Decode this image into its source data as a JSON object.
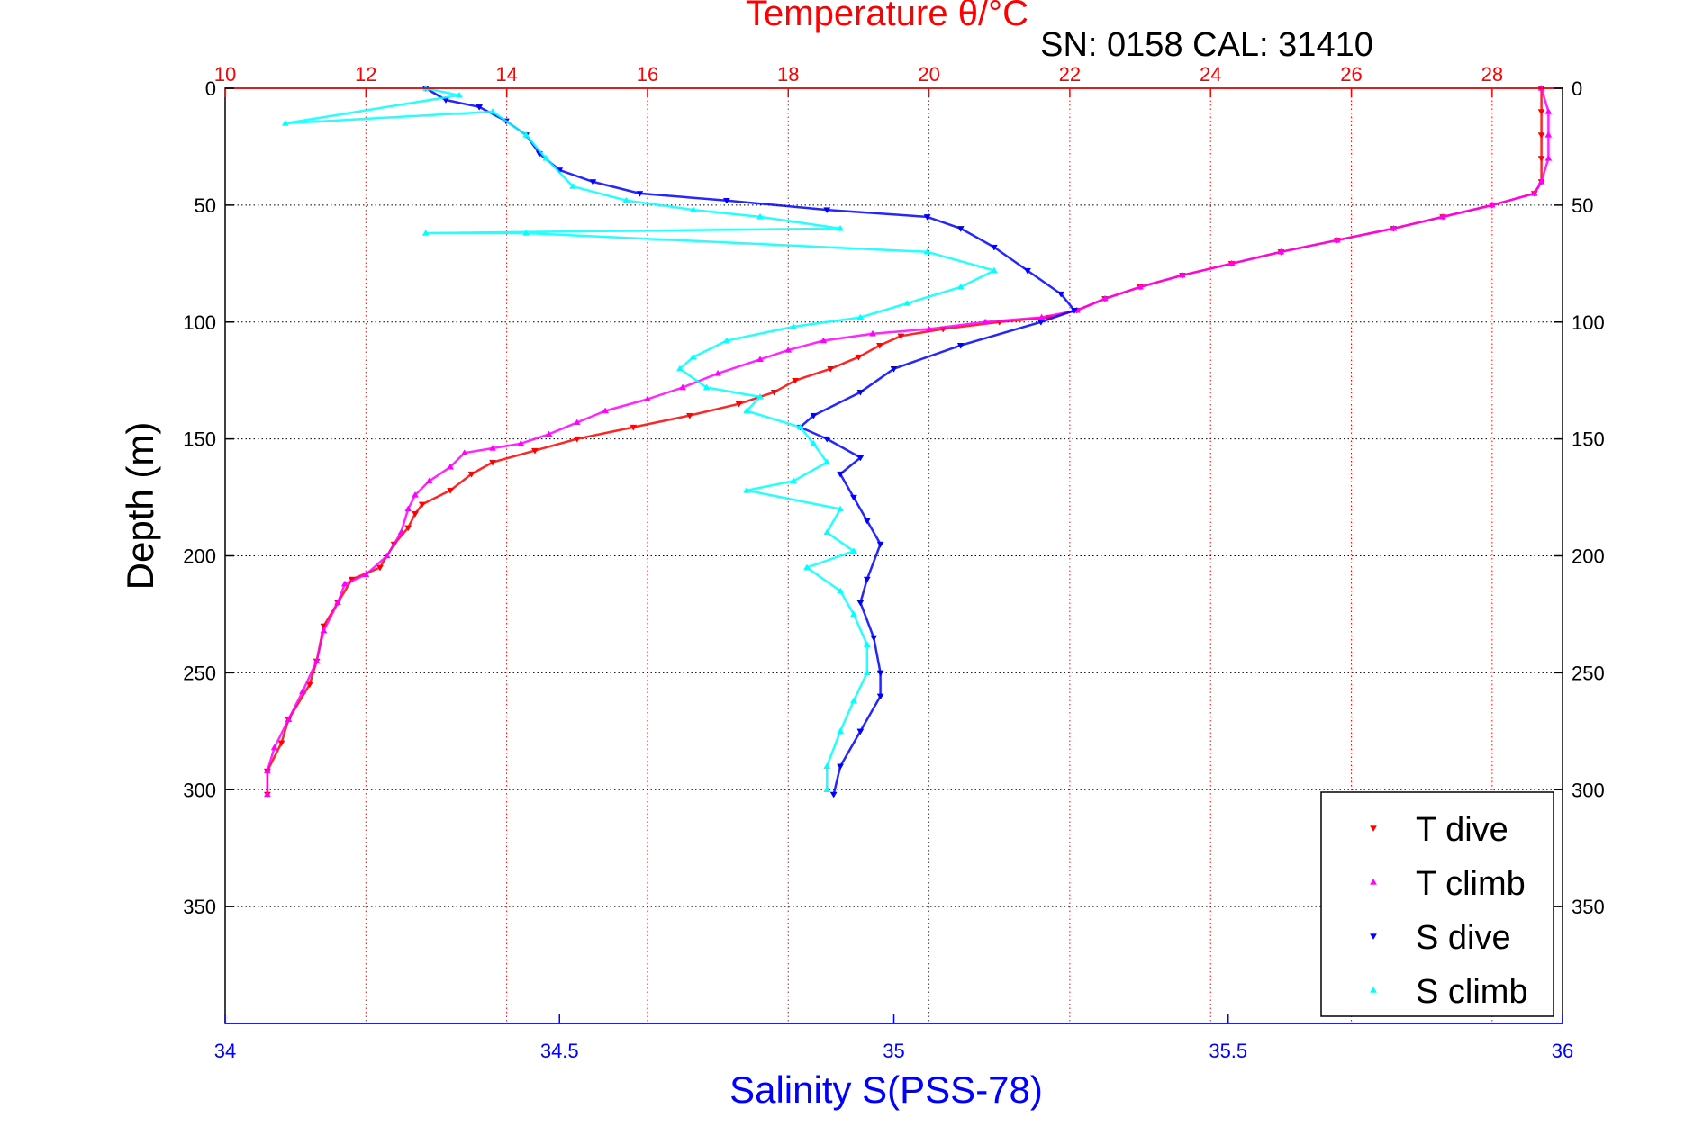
{
  "chart_data": {
    "type": "scatter",
    "title": "Temperature θ/°C",
    "subtitle": "SN: 0158  CAL: 31410",
    "ylabel": "Depth (m)",
    "xlabel": "Salinity S(PSS-78)",
    "x_top_label": "Temperature θ/°C",
    "ylim": [
      0,
      400
    ],
    "y_reversed": true,
    "temperature_axis": {
      "range": [
        10,
        29
      ],
      "ticks": [
        10,
        12,
        14,
        16,
        18,
        20,
        22,
        24,
        26,
        28
      ],
      "tick_labels": [
        "10",
        "12",
        "14",
        "16",
        "18",
        "20",
        "22",
        "24",
        "26",
        "28"
      ],
      "color": "#ff0000"
    },
    "salinity_axis": {
      "range": [
        34,
        36
      ],
      "ticks": [
        34,
        34.5,
        35,
        35.5,
        36
      ],
      "tick_labels": [
        "34",
        "34.5",
        "35",
        "35.5",
        "36"
      ],
      "color": "#0000ff"
    },
    "depth_axis": {
      "ticks": [
        0,
        50,
        100,
        150,
        200,
        250,
        300,
        350
      ],
      "tick_labels": [
        "0",
        "50",
        "100",
        "150",
        "200",
        "250",
        "300",
        "350"
      ]
    },
    "grid": true,
    "legend_position": "bottom-right",
    "series": [
      {
        "name": "T dive",
        "axis": "temperature",
        "color": "#ff0000",
        "marker": "triangle-down",
        "points": [
          [
            28.7,
            0
          ],
          [
            28.7,
            10
          ],
          [
            28.7,
            20
          ],
          [
            28.7,
            30
          ],
          [
            28.7,
            40
          ],
          [
            28.6,
            45
          ],
          [
            28.0,
            50
          ],
          [
            27.3,
            55
          ],
          [
            26.6,
            60
          ],
          [
            25.8,
            65
          ],
          [
            25.0,
            70
          ],
          [
            24.3,
            75
          ],
          [
            23.6,
            80
          ],
          [
            23.0,
            85
          ],
          [
            22.5,
            90
          ],
          [
            22.1,
            95
          ],
          [
            21.7,
            98
          ],
          [
            21.0,
            100
          ],
          [
            20.2,
            103
          ],
          [
            19.6,
            106
          ],
          [
            19.3,
            110
          ],
          [
            19.0,
            115
          ],
          [
            18.6,
            120
          ],
          [
            18.1,
            125
          ],
          [
            17.8,
            130
          ],
          [
            17.3,
            135
          ],
          [
            16.6,
            140
          ],
          [
            15.8,
            145
          ],
          [
            15.0,
            150
          ],
          [
            14.4,
            155
          ],
          [
            13.8,
            160
          ],
          [
            13.5,
            165
          ],
          [
            13.2,
            172
          ],
          [
            12.8,
            178
          ],
          [
            12.7,
            182
          ],
          [
            12.6,
            188
          ],
          [
            12.4,
            195
          ],
          [
            12.2,
            205
          ],
          [
            11.8,
            210
          ],
          [
            11.6,
            220
          ],
          [
            11.4,
            230
          ],
          [
            11.3,
            245
          ],
          [
            11.2,
            255
          ],
          [
            10.9,
            270
          ],
          [
            10.8,
            280
          ],
          [
            10.6,
            292
          ],
          [
            10.6,
            302
          ]
        ]
      },
      {
        "name": "T climb",
        "axis": "temperature",
        "color": "#ff00ff",
        "marker": "triangle-up",
        "points": [
          [
            28.7,
            0
          ],
          [
            28.8,
            10
          ],
          [
            28.8,
            20
          ],
          [
            28.8,
            30
          ],
          [
            28.7,
            40
          ],
          [
            28.6,
            45
          ],
          [
            28.0,
            50
          ],
          [
            27.3,
            55
          ],
          [
            26.6,
            60
          ],
          [
            25.8,
            65
          ],
          [
            25.0,
            70
          ],
          [
            24.3,
            75
          ],
          [
            23.6,
            80
          ],
          [
            23.0,
            85
          ],
          [
            22.5,
            90
          ],
          [
            22.1,
            95
          ],
          [
            21.6,
            98
          ],
          [
            20.8,
            100
          ],
          [
            20.0,
            103
          ],
          [
            19.2,
            105
          ],
          [
            18.5,
            108
          ],
          [
            18.0,
            112
          ],
          [
            17.6,
            116
          ],
          [
            17.0,
            122
          ],
          [
            16.5,
            128
          ],
          [
            16.0,
            133
          ],
          [
            15.4,
            138
          ],
          [
            15.0,
            143
          ],
          [
            14.6,
            148
          ],
          [
            14.2,
            152
          ],
          [
            13.8,
            154
          ],
          [
            13.4,
            156
          ],
          [
            13.2,
            162
          ],
          [
            12.9,
            168
          ],
          [
            12.7,
            174
          ],
          [
            12.6,
            180
          ],
          [
            12.5,
            190
          ],
          [
            12.3,
            200
          ],
          [
            12.0,
            208
          ],
          [
            11.7,
            212
          ],
          [
            11.6,
            220
          ],
          [
            11.4,
            232
          ],
          [
            11.3,
            245
          ],
          [
            11.1,
            258
          ],
          [
            10.9,
            270
          ],
          [
            10.7,
            282
          ],
          [
            10.6,
            292
          ],
          [
            10.6,
            302
          ]
        ]
      },
      {
        "name": "S dive",
        "axis": "salinity",
        "color": "#0000ff",
        "marker": "triangle-down",
        "points": [
          [
            34.3,
            0
          ],
          [
            34.33,
            5
          ],
          [
            34.38,
            8
          ],
          [
            34.42,
            14
          ],
          [
            34.45,
            20
          ],
          [
            34.47,
            28
          ],
          [
            34.5,
            35
          ],
          [
            34.55,
            40
          ],
          [
            34.62,
            45
          ],
          [
            34.75,
            48
          ],
          [
            34.9,
            52
          ],
          [
            35.05,
            55
          ],
          [
            35.1,
            60
          ],
          [
            35.15,
            68
          ],
          [
            35.2,
            78
          ],
          [
            35.25,
            88
          ],
          [
            35.27,
            95
          ],
          [
            35.22,
            100
          ],
          [
            35.1,
            110
          ],
          [
            35.0,
            120
          ],
          [
            34.95,
            130
          ],
          [
            34.88,
            140
          ],
          [
            34.86,
            145
          ],
          [
            34.9,
            150
          ],
          [
            34.95,
            158
          ],
          [
            34.92,
            165
          ],
          [
            34.94,
            175
          ],
          [
            34.96,
            185
          ],
          [
            34.98,
            195
          ],
          [
            34.96,
            210
          ],
          [
            34.95,
            220
          ],
          [
            34.97,
            235
          ],
          [
            34.98,
            250
          ],
          [
            34.98,
            260
          ],
          [
            34.95,
            275
          ],
          [
            34.92,
            290
          ],
          [
            34.91,
            302
          ]
        ]
      },
      {
        "name": "S climb",
        "axis": "salinity",
        "color": "#00ffff",
        "marker": "triangle-up",
        "points": [
          [
            34.3,
            0
          ],
          [
            34.35,
            3
          ],
          [
            34.09,
            15
          ],
          [
            34.4,
            10
          ],
          [
            34.45,
            20
          ],
          [
            34.48,
            30
          ],
          [
            34.52,
            42
          ],
          [
            34.6,
            48
          ],
          [
            34.7,
            52
          ],
          [
            34.8,
            55
          ],
          [
            34.92,
            60
          ],
          [
            34.3,
            62
          ],
          [
            34.45,
            62
          ],
          [
            35.05,
            70
          ],
          [
            35.15,
            78
          ],
          [
            35.1,
            85
          ],
          [
            35.02,
            92
          ],
          [
            34.95,
            98
          ],
          [
            34.85,
            102
          ],
          [
            34.75,
            108
          ],
          [
            34.7,
            115
          ],
          [
            34.68,
            120
          ],
          [
            34.72,
            128
          ],
          [
            34.8,
            132
          ],
          [
            34.78,
            138
          ],
          [
            34.86,
            145
          ],
          [
            34.88,
            152
          ],
          [
            34.9,
            160
          ],
          [
            34.85,
            168
          ],
          [
            34.78,
            172
          ],
          [
            34.92,
            180
          ],
          [
            34.9,
            190
          ],
          [
            34.94,
            198
          ],
          [
            34.87,
            205
          ],
          [
            34.92,
            215
          ],
          [
            34.94,
            225
          ],
          [
            34.96,
            238
          ],
          [
            34.96,
            250
          ],
          [
            34.94,
            262
          ],
          [
            34.92,
            275
          ],
          [
            34.9,
            290
          ],
          [
            34.9,
            300
          ]
        ]
      }
    ]
  }
}
